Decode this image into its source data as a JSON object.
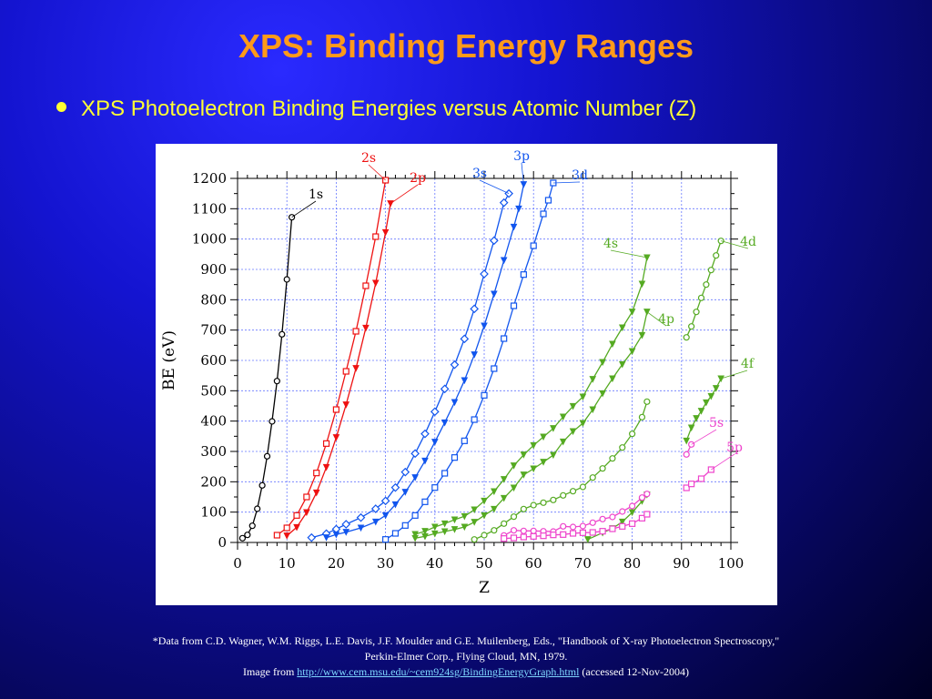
{
  "slide": {
    "title": "XPS: Binding Energy Ranges",
    "bullet": "XPS Photoelectron Binding Energies versus Atomic Number (Z)",
    "colors": {
      "title": "#ff9a1a",
      "bullet": "#ffff33",
      "background": "#1414d0"
    }
  },
  "footnote": {
    "line1": "*Data from C.D. Wagner, W.M. Riggs, L.E. Davis, J.F. Moulder and G.E. Muilenberg, Eds., \"Handbook of X-ray Photoelectron Spectroscopy,\"",
    "line2": "Perkin-Elmer Corp., Flying Cloud, MN, 1979.",
    "line3_prefix": "Image from",
    "link_text": "http://www.cem.msu.edu/~cem924sg/BindingEnergyGraph.html",
    "line3_suffix": "(accessed 12-Nov-2004)"
  },
  "chart_data": {
    "type": "line",
    "xlabel": "Z",
    "ylabel": "BE (eV)",
    "xlim": [
      0,
      100
    ],
    "ylim": [
      0,
      1200
    ],
    "xticks": [
      0,
      10,
      20,
      30,
      40,
      50,
      60,
      70,
      80,
      90,
      100
    ],
    "yticks": [
      0,
      100,
      200,
      300,
      400,
      500,
      600,
      700,
      800,
      900,
      1000,
      1100,
      1200
    ],
    "grid": true,
    "series": [
      {
        "name": "1s",
        "color": "#000000",
        "marker": "circle",
        "points": [
          [
            1,
            14
          ],
          [
            2,
            25
          ],
          [
            3,
            55
          ],
          [
            4,
            111
          ],
          [
            5,
            188
          ],
          [
            6,
            284
          ],
          [
            7,
            399
          ],
          [
            8,
            532
          ],
          [
            9,
            686
          ],
          [
            10,
            867
          ],
          [
            11,
            1072
          ]
        ]
      },
      {
        "name": "2s",
        "color": "#ee1111",
        "marker": "square",
        "points": [
          [
            8,
            24
          ],
          [
            10,
            48
          ],
          [
            12,
            89
          ],
          [
            14,
            150
          ],
          [
            16,
            229
          ],
          [
            18,
            326
          ],
          [
            20,
            438
          ],
          [
            22,
            564
          ],
          [
            24,
            696
          ],
          [
            26,
            846
          ],
          [
            28,
            1008
          ],
          [
            30,
            1194
          ]
        ]
      },
      {
        "name": "2p",
        "color": "#ee1111",
        "marker": "triangle",
        "points": [
          [
            10,
            22
          ],
          [
            12,
            50
          ],
          [
            14,
            99
          ],
          [
            16,
            164
          ],
          [
            18,
            248
          ],
          [
            20,
            346
          ],
          [
            22,
            454
          ],
          [
            24,
            574
          ],
          [
            26,
            707
          ],
          [
            28,
            855
          ],
          [
            30,
            1022
          ],
          [
            31,
            1117
          ]
        ]
      },
      {
        "name": "3s",
        "color": "#1155ee",
        "marker": "diamond",
        "points": [
          [
            15,
            16
          ],
          [
            18,
            29
          ],
          [
            20,
            44
          ],
          [
            22,
            60
          ],
          [
            25,
            82
          ],
          [
            28,
            111
          ],
          [
            30,
            137
          ],
          [
            32,
            181
          ],
          [
            34,
            232
          ],
          [
            36,
            293
          ],
          [
            38,
            358
          ],
          [
            40,
            431
          ],
          [
            42,
            506
          ],
          [
            44,
            586
          ],
          [
            46,
            671
          ],
          [
            48,
            770
          ],
          [
            50,
            885
          ],
          [
            52,
            995
          ],
          [
            54,
            1120
          ],
          [
            55,
            1150
          ]
        ]
      },
      {
        "name": "3p",
        "color": "#1155ee",
        "marker": "triangle",
        "points": [
          [
            18,
            16
          ],
          [
            20,
            26
          ],
          [
            22,
            34
          ],
          [
            25,
            48
          ],
          [
            28,
            68
          ],
          [
            30,
            89
          ],
          [
            32,
            125
          ],
          [
            34,
            166
          ],
          [
            36,
            214
          ],
          [
            38,
            269
          ],
          [
            40,
            331
          ],
          [
            42,
            395
          ],
          [
            44,
            462
          ],
          [
            46,
            534
          ],
          [
            48,
            619
          ],
          [
            50,
            714
          ],
          [
            52,
            819
          ],
          [
            54,
            930
          ],
          [
            56,
            1040
          ],
          [
            57,
            1100
          ],
          [
            58,
            1180
          ]
        ]
      },
      {
        "name": "3d",
        "color": "#1155ee",
        "marker": "square",
        "points": [
          [
            30,
            10
          ],
          [
            32,
            30
          ],
          [
            34,
            56
          ],
          [
            36,
            89
          ],
          [
            38,
            134
          ],
          [
            40,
            181
          ],
          [
            42,
            228
          ],
          [
            44,
            280
          ],
          [
            46,
            335
          ],
          [
            48,
            405
          ],
          [
            50,
            485
          ],
          [
            52,
            573
          ],
          [
            54,
            672
          ],
          [
            56,
            780
          ],
          [
            58,
            883
          ],
          [
            60,
            978
          ],
          [
            62,
            1083
          ],
          [
            63,
            1128
          ],
          [
            64,
            1185
          ]
        ]
      },
      {
        "name": "4s",
        "color": "#55aa22",
        "marker": "triangle",
        "points": [
          [
            36,
            27
          ],
          [
            38,
            37
          ],
          [
            40,
            51
          ],
          [
            42,
            62
          ],
          [
            44,
            75
          ],
          [
            46,
            86
          ],
          [
            48,
            108
          ],
          [
            50,
            137
          ],
          [
            52,
            168
          ],
          [
            54,
            208
          ],
          [
            56,
            253
          ],
          [
            58,
            289
          ],
          [
            60,
            320
          ],
          [
            62,
            348
          ],
          [
            64,
            376
          ],
          [
            66,
            414
          ],
          [
            68,
            449
          ],
          [
            70,
            480
          ],
          [
            72,
            538
          ],
          [
            74,
            594
          ],
          [
            76,
            654
          ],
          [
            78,
            708
          ],
          [
            80,
            760
          ],
          [
            82,
            852
          ],
          [
            83,
            939
          ]
        ]
      },
      {
        "name": "4p",
        "color": "#55aa22",
        "marker": "triangle",
        "points": [
          [
            36,
            14
          ],
          [
            38,
            20
          ],
          [
            40,
            29
          ],
          [
            42,
            36
          ],
          [
            44,
            43
          ],
          [
            46,
            51
          ],
          [
            48,
            67
          ],
          [
            50,
            89
          ],
          [
            52,
            110
          ],
          [
            54,
            146
          ],
          [
            56,
            180
          ],
          [
            58,
            223
          ],
          [
            60,
            243
          ],
          [
            62,
            265
          ],
          [
            64,
            288
          ],
          [
            66,
            332
          ],
          [
            68,
            366
          ],
          [
            70,
            393
          ],
          [
            72,
            438
          ],
          [
            74,
            491
          ],
          [
            76,
            540
          ],
          [
            78,
            587
          ],
          [
            80,
            630
          ],
          [
            82,
            683
          ],
          [
            83,
            760
          ]
        ]
      },
      {
        "name": "4d",
        "color": "#55aa22",
        "marker": "circle",
        "points": [
          [
            48,
            10
          ],
          [
            50,
            24
          ],
          [
            52,
            40
          ],
          [
            54,
            62
          ],
          [
            56,
            85
          ],
          [
            58,
            110
          ],
          [
            60,
            123
          ],
          [
            62,
            131
          ],
          [
            64,
            140
          ],
          [
            66,
            155
          ],
          [
            68,
            169
          ],
          [
            70,
            183
          ],
          [
            72,
            214
          ],
          [
            74,
            244
          ],
          [
            76,
            277
          ],
          [
            78,
            313
          ],
          [
            80,
            358
          ],
          [
            82,
            413
          ],
          [
            83,
            464
          ],
          [
            91,
            676
          ],
          [
            92,
            712
          ],
          [
            93,
            760
          ],
          [
            94,
            806
          ],
          [
            95,
            850
          ],
          [
            96,
            898
          ],
          [
            97,
            946
          ],
          [
            98,
            994
          ]
        ]
      },
      {
        "name": "4f",
        "color": "#55aa22",
        "marker": "triangle",
        "points": [
          [
            71,
            10
          ],
          [
            74,
            32
          ],
          [
            76,
            46
          ],
          [
            78,
            68
          ],
          [
            80,
            99
          ],
          [
            82,
            136
          ],
          [
            83,
            157
          ],
          [
            91,
            335
          ],
          [
            92,
            378
          ],
          [
            93,
            409
          ],
          [
            94,
            433
          ],
          [
            95,
            461
          ],
          [
            96,
            482
          ],
          [
            97,
            508
          ],
          [
            98,
            540
          ]
        ]
      },
      {
        "name": "5s",
        "color": "#ee44cc",
        "marker": "circle",
        "points": [
          [
            54,
            23
          ],
          [
            56,
            40
          ],
          [
            58,
            38
          ],
          [
            60,
            38
          ],
          [
            62,
            37
          ],
          [
            64,
            36
          ],
          [
            66,
            53
          ],
          [
            68,
            51
          ],
          [
            70,
            54
          ],
          [
            72,
            65
          ],
          [
            74,
            77
          ],
          [
            76,
            84
          ],
          [
            78,
            102
          ],
          [
            80,
            120
          ],
          [
            82,
            148
          ],
          [
            83,
            160
          ],
          [
            91,
            290
          ],
          [
            92,
            323
          ]
        ]
      },
      {
        "name": "5p",
        "color": "#ee44cc",
        "marker": "square",
        "points": [
          [
            54,
            13
          ],
          [
            56,
            15
          ],
          [
            58,
            18
          ],
          [
            60,
            20
          ],
          [
            62,
            22
          ],
          [
            64,
            25
          ],
          [
            66,
            26
          ],
          [
            68,
            30
          ],
          [
            70,
            32
          ],
          [
            72,
            33
          ],
          [
            74,
            37
          ],
          [
            76,
            45
          ],
          [
            78,
            53
          ],
          [
            80,
            62
          ],
          [
            82,
            80
          ],
          [
            83,
            93
          ],
          [
            91,
            180
          ],
          [
            92,
            193
          ],
          [
            94,
            210
          ],
          [
            96,
            240
          ]
        ]
      }
    ]
  }
}
